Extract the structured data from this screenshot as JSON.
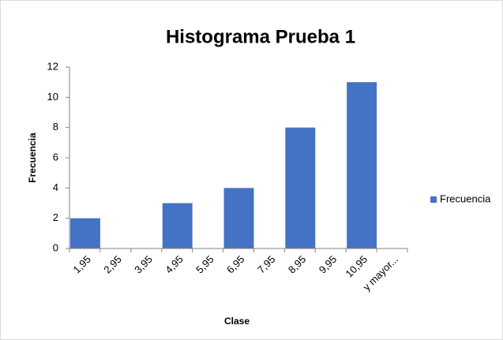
{
  "chart_data": {
    "type": "bar",
    "title": "Histograma Prueba 1",
    "x_label": "Clase",
    "y_label": "Frecuencia",
    "categories": [
      "1,95",
      "2,95",
      "3,95",
      "4,95",
      "5,95",
      "6,95",
      "7,95",
      "8,95",
      "9,95",
      "10,95",
      "y mayor..."
    ],
    "series": [
      {
        "name": "Frecuencia",
        "color": "#4472c4",
        "values": [
          2,
          0,
          0,
          3,
          0,
          4,
          0,
          8,
          0,
          11,
          0
        ]
      }
    ],
    "ylim": [
      0,
      12
    ],
    "yticks": [
      0,
      2,
      4,
      6,
      8,
      10,
      12
    ],
    "grid": false,
    "legend": "right"
  }
}
